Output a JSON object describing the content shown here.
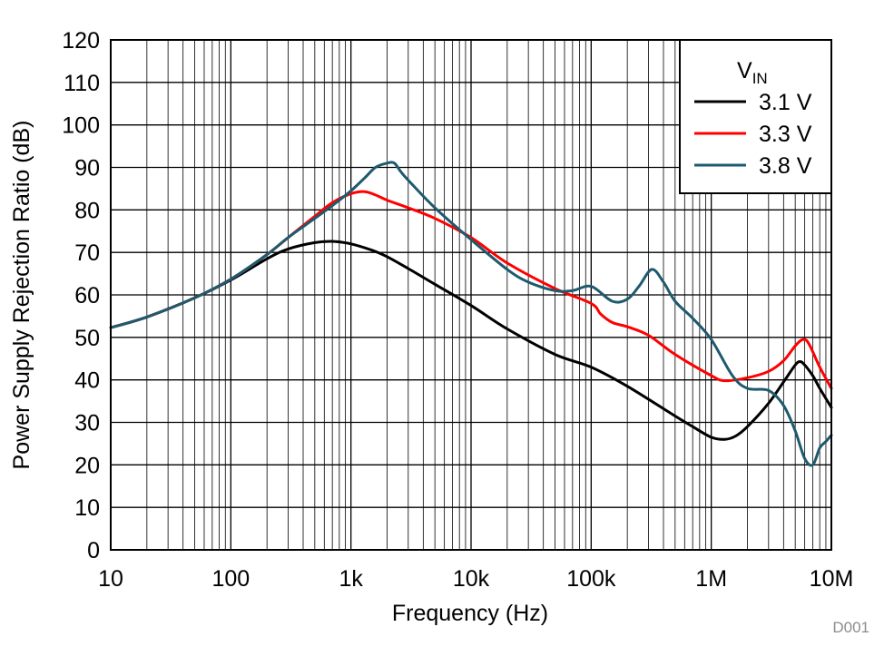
{
  "chart_data": {
    "type": "line",
    "xlabel": "Frequency (Hz)",
    "ylabel": "Power Supply Rejection Ratio (dB)",
    "x_scale": "log",
    "xlim": [
      10,
      10000000
    ],
    "ylim": [
      0,
      120
    ],
    "x_ticks": [
      {
        "value": 10,
        "label": "10"
      },
      {
        "value": 100,
        "label": "100"
      },
      {
        "value": 1000,
        "label": "1k"
      },
      {
        "value": 10000,
        "label": "10k"
      },
      {
        "value": 100000,
        "label": "100k"
      },
      {
        "value": 1000000,
        "label": "1M"
      },
      {
        "value": 10000000,
        "label": "10M"
      }
    ],
    "y_ticks": [
      0,
      10,
      20,
      30,
      40,
      50,
      60,
      70,
      80,
      90,
      100,
      110,
      120
    ],
    "grid": true,
    "legend": {
      "title": "V",
      "title_subscript": "IN",
      "position": "top-right"
    },
    "series": [
      {
        "name": "3.1 V",
        "color": "#000000",
        "points": [
          [
            10,
            52.3
          ],
          [
            20,
            54.8
          ],
          [
            50,
            59.3
          ],
          [
            100,
            63.5
          ],
          [
            200,
            68.5
          ],
          [
            300,
            70.8
          ],
          [
            500,
            72.3
          ],
          [
            700,
            72.6
          ],
          [
            1000,
            72.0
          ],
          [
            1500,
            70.5
          ],
          [
            2000,
            69.0
          ],
          [
            3000,
            66.2
          ],
          [
            5000,
            62.5
          ],
          [
            10000,
            57.5
          ],
          [
            20000,
            52.0
          ],
          [
            50000,
            46.0
          ],
          [
            100000,
            43.0
          ],
          [
            200000,
            38.5
          ],
          [
            500000,
            31.5
          ],
          [
            700000,
            29.0
          ],
          [
            1000000,
            26.5
          ],
          [
            1300000,
            26.0
          ],
          [
            1600000,
            26.8
          ],
          [
            2000000,
            29.0
          ],
          [
            3000000,
            34.5
          ],
          [
            4000000,
            39.5
          ],
          [
            5000000,
            43.5
          ],
          [
            5500000,
            44.3
          ],
          [
            6000000,
            43.5
          ],
          [
            7000000,
            41.0
          ],
          [
            8000000,
            38.0
          ],
          [
            10000000,
            33.5
          ]
        ]
      },
      {
        "name": "3.3 V",
        "color": "#ff0000",
        "points": [
          [
            10,
            52.3
          ],
          [
            20,
            54.8
          ],
          [
            50,
            59.3
          ],
          [
            100,
            63.7
          ],
          [
            200,
            69.5
          ],
          [
            300,
            73.5
          ],
          [
            500,
            78.5
          ],
          [
            700,
            81.7
          ],
          [
            1000,
            83.8
          ],
          [
            1300,
            84.3
          ],
          [
            1600,
            83.5
          ],
          [
            2000,
            82.3
          ],
          [
            3000,
            80.5
          ],
          [
            5000,
            78.0
          ],
          [
            10000,
            73.5
          ],
          [
            20000,
            67.5
          ],
          [
            50000,
            61.5
          ],
          [
            100000,
            58.0
          ],
          [
            120000,
            55.5
          ],
          [
            150000,
            53.5
          ],
          [
            200000,
            52.5
          ],
          [
            300000,
            50.5
          ],
          [
            500000,
            46.0
          ],
          [
            1000000,
            41.0
          ],
          [
            1300000,
            39.8
          ],
          [
            2000000,
            40.5
          ],
          [
            3000000,
            42.0
          ],
          [
            4000000,
            44.5
          ],
          [
            5000000,
            48.0
          ],
          [
            5800000,
            49.5
          ],
          [
            6500000,
            48.5
          ],
          [
            8000000,
            43.0
          ],
          [
            10000000,
            38.0
          ]
        ]
      },
      {
        "name": "3.8 V",
        "color": "#1e5a6e",
        "points": [
          [
            10,
            52.3
          ],
          [
            20,
            54.8
          ],
          [
            50,
            59.3
          ],
          [
            100,
            63.7
          ],
          [
            200,
            69.5
          ],
          [
            300,
            73.5
          ],
          [
            500,
            78.0
          ],
          [
            700,
            81.0
          ],
          [
            1000,
            84.5
          ],
          [
            1300,
            87.5
          ],
          [
            1600,
            90.0
          ],
          [
            2000,
            91.0
          ],
          [
            2300,
            91.0
          ],
          [
            2600,
            89.0
          ],
          [
            3000,
            87.0
          ],
          [
            5000,
            80.5
          ],
          [
            10000,
            73.0
          ],
          [
            20000,
            66.0
          ],
          [
            30000,
            63.0
          ],
          [
            50000,
            61.0
          ],
          [
            70000,
            61.0
          ],
          [
            100000,
            62.0
          ],
          [
            150000,
            58.5
          ],
          [
            200000,
            59.0
          ],
          [
            250000,
            62.0
          ],
          [
            320000,
            66.0
          ],
          [
            400000,
            63.0
          ],
          [
            500000,
            58.5
          ],
          [
            700000,
            54.5
          ],
          [
            1000000,
            49.5
          ],
          [
            1500000,
            41.0
          ],
          [
            2000000,
            38.0
          ],
          [
            3000000,
            37.5
          ],
          [
            4000000,
            34.0
          ],
          [
            5000000,
            28.0
          ],
          [
            6000000,
            21.5
          ],
          [
            7000000,
            20.0
          ],
          [
            8000000,
            24.0
          ],
          [
            9000000,
            25.5
          ],
          [
            10000000,
            27.0
          ]
        ]
      }
    ]
  },
  "annotation": {
    "code": "D001"
  }
}
